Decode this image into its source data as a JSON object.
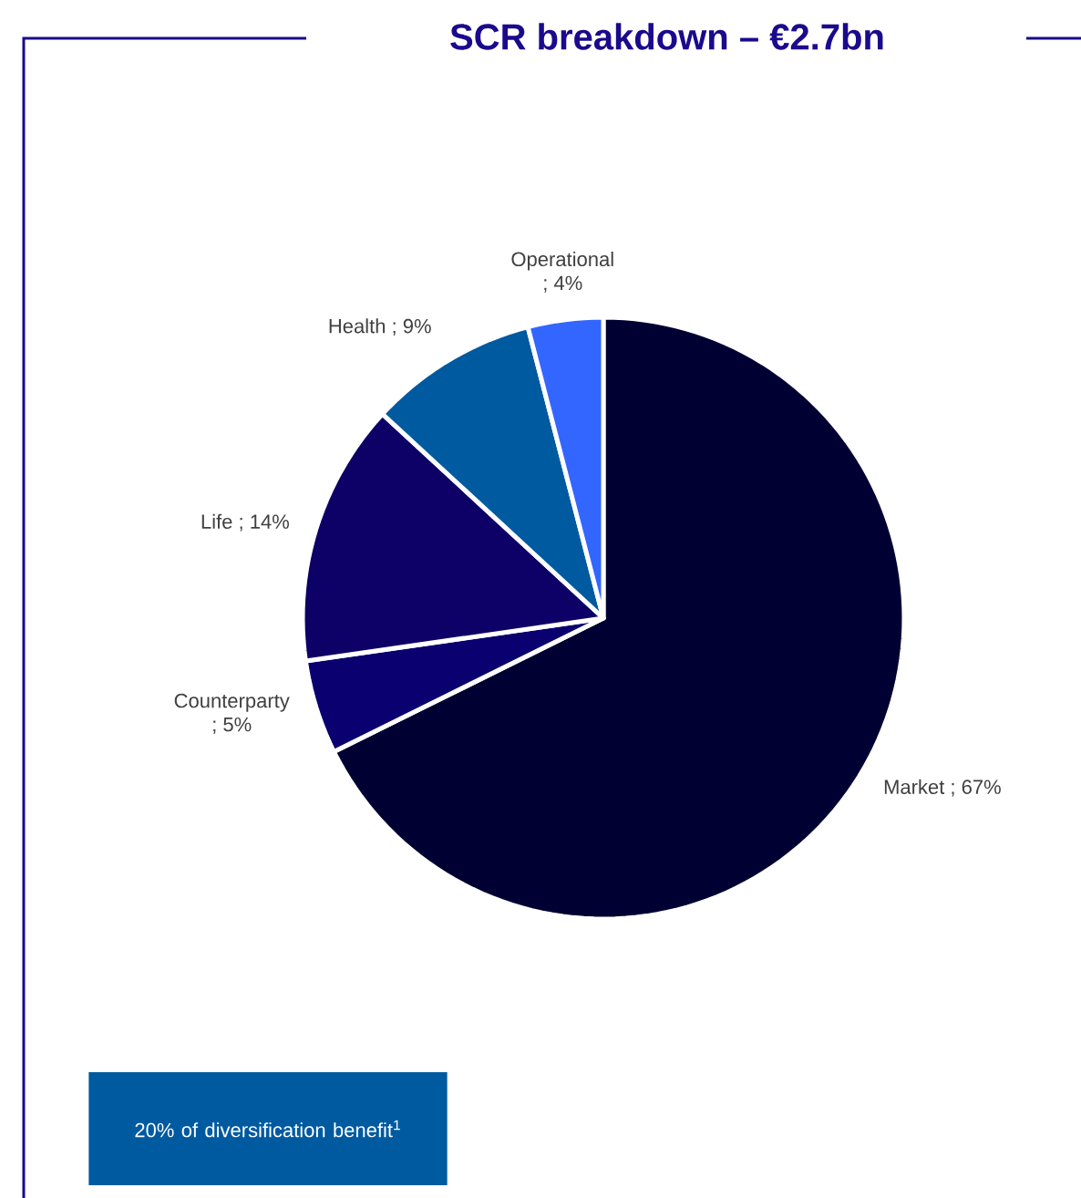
{
  "chart_data": {
    "type": "pie",
    "title": "SCR breakdown – €2.7bn",
    "categories": [
      "Market",
      "Counterparty",
      "Life",
      "Health",
      "Operational"
    ],
    "values": [
      67,
      5,
      14,
      9,
      4
    ],
    "colors": [
      "#000033",
      "#0a0070",
      "#0d0066",
      "#005aa0",
      "#3366ff"
    ],
    "value_labels": [
      "; 67%",
      "; 5%",
      "; 14%",
      "; 9%",
      "; 4%"
    ],
    "annotations": [
      "20% of diversification benefit$^{1}$"
    ]
  }
}
